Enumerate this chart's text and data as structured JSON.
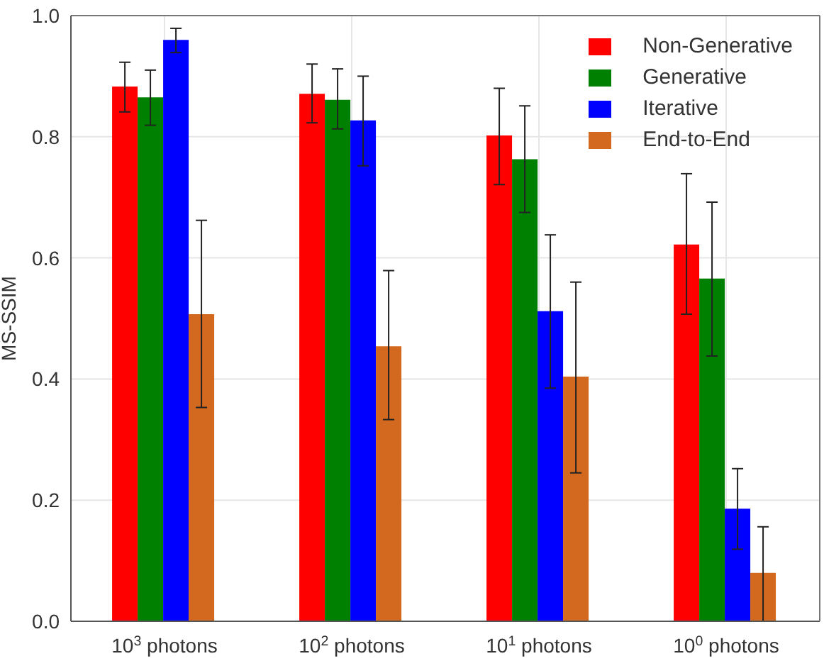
{
  "chart_data": {
    "type": "bar",
    "ylabel": "MS-SSIM",
    "categories": [
      "10$^{3}$ photons",
      "10$^{2}$ photons",
      "10$^{1}$ photons",
      "10$^{0}$ photons"
    ],
    "series": [
      {
        "name": "Non-Generative",
        "color": "#ff0000",
        "values": [
          0.883,
          0.871,
          0.802,
          0.622
        ],
        "errors": [
          [
            0.841,
            0.923
          ],
          [
            0.823,
            0.92
          ],
          [
            0.721,
            0.88
          ],
          [
            0.507,
            0.739
          ]
        ]
      },
      {
        "name": "Generative",
        "color": "#008000",
        "values": [
          0.865,
          0.861,
          0.763,
          0.566
        ],
        "errors": [
          [
            0.819,
            0.91
          ],
          [
            0.813,
            0.912
          ],
          [
            0.675,
            0.851
          ],
          [
            0.438,
            0.692
          ]
        ]
      },
      {
        "name": "Iterative",
        "color": "#0000ff",
        "values": [
          0.96,
          0.827,
          0.512,
          0.186
        ],
        "errors": [
          [
            0.939,
            0.979
          ],
          [
            0.752,
            0.9
          ],
          [
            0.385,
            0.638
          ],
          [
            0.119,
            0.252
          ]
        ]
      },
      {
        "name": "End-to-End",
        "color": "#d2691e",
        "values": [
          0.507,
          0.454,
          0.404,
          0.08
        ],
        "errors": [
          [
            0.353,
            0.662
          ],
          [
            0.333,
            0.579
          ],
          [
            0.245,
            0.56
          ],
          [
            0.0,
            0.156
          ]
        ]
      }
    ],
    "ylim": [
      0,
      1
    ],
    "yticks": [
      {
        "value": 0,
        "label": "0.0"
      },
      {
        "value": 0.2,
        "label": "0.2"
      },
      {
        "value": 0.4,
        "label": "0.4"
      },
      {
        "value": 0.6,
        "label": "0.6"
      },
      {
        "value": 0.8,
        "label": "0.8"
      },
      {
        "value": 1,
        "label": "1.0"
      }
    ],
    "grid": true,
    "legend": "top right"
  }
}
